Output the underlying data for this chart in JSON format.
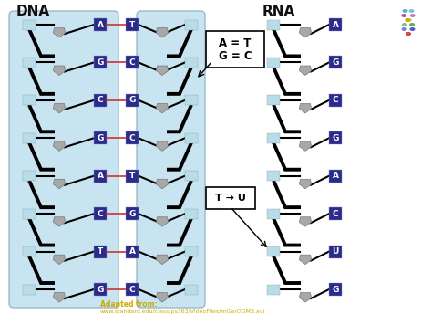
{
  "background_color": "#ffffff",
  "dna_label": "DNA",
  "rna_label": "RNA",
  "dna_box_color": "#c8e4f0",
  "dna_pairs": [
    [
      "A",
      "T"
    ],
    [
      "G",
      "C"
    ],
    [
      "C",
      "G"
    ],
    [
      "G",
      "C"
    ],
    [
      "A",
      "T"
    ],
    [
      "C",
      "G"
    ],
    [
      "T",
      "A"
    ],
    [
      "G",
      "C"
    ]
  ],
  "rna_bases": [
    "A",
    "G",
    "C",
    "G",
    "A",
    "C",
    "U",
    "G"
  ],
  "blue_box_color": "#2b2b8c",
  "teal_box_color": "#a8cfc0",
  "teal_box_color2": "#b8dce8",
  "gray_pentagon_color": "#a8a8a8",
  "annotation1_line1": "A = T",
  "annotation1_line2": "G = C",
  "annotation2_text": "T → U",
  "adapted_text": "Adapted from:",
  "adapted_url": "www.standard.edu/class/ps363/VideoFiles/mGarOGM3.avi"
}
